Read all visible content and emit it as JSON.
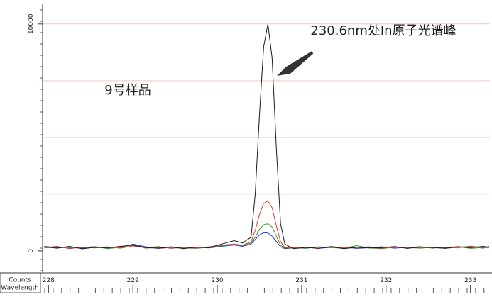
{
  "chart_data": {
    "type": "line",
    "annotation": "230.6nm处In原子光谱峰",
    "sample_label": "9号样品",
    "ylabel": "Counts",
    "xlabel": "Wavelength",
    "x": [
      227.95,
      228.1,
      228.25,
      228.4,
      228.55,
      228.7,
      228.85,
      229.0,
      229.15,
      229.3,
      229.45,
      229.6,
      229.75,
      229.9,
      230.05,
      230.2,
      230.3,
      230.4,
      230.45,
      230.5,
      230.55,
      230.6,
      230.65,
      230.7,
      230.75,
      230.8,
      230.9,
      231.05,
      231.2,
      231.35,
      231.5,
      231.65,
      231.8,
      231.95,
      232.1,
      232.25,
      232.4,
      232.55,
      232.7,
      232.85,
      233.0,
      233.15,
      233.22
    ],
    "series": [
      {
        "color": "#1a1a1a",
        "values": [
          180,
          120,
          200,
          90,
          160,
          130,
          200,
          250,
          150,
          120,
          180,
          100,
          170,
          140,
          300,
          450,
          350,
          600,
          2500,
          6000,
          9000,
          10000,
          8500,
          4500,
          1200,
          300,
          100,
          150,
          120,
          180,
          100,
          160,
          130,
          140,
          190,
          110,
          170,
          150,
          120,
          180,
          140,
          200,
          160
        ]
      },
      {
        "color": "#e0402a",
        "values": [
          150,
          200,
          100,
          170,
          130,
          180,
          120,
          220,
          140,
          190,
          110,
          160,
          130,
          180,
          250,
          300,
          250,
          400,
          900,
          1600,
          2100,
          2200,
          1900,
          1100,
          400,
          150,
          120,
          170,
          100,
          200,
          130,
          150,
          180,
          110,
          160,
          140,
          190,
          120,
          170,
          130,
          210,
          150,
          180
        ]
      },
      {
        "color": "#3a9a3a",
        "values": [
          130,
          170,
          120,
          150,
          190,
          100,
          160,
          280,
          120,
          150,
          170,
          130,
          110,
          160,
          220,
          280,
          230,
          350,
          600,
          950,
          1150,
          1200,
          1050,
          650,
          250,
          120,
          150,
          110,
          180,
          140,
          120,
          230,
          130,
          100,
          170,
          150,
          120,
          160,
          140,
          190,
          110,
          150,
          130
        ]
      },
      {
        "color": "#2838c0",
        "values": [
          200,
          140,
          160,
          120,
          150,
          170,
          130,
          300,
          180,
          110,
          150,
          120,
          160,
          130,
          200,
          260,
          200,
          300,
          500,
          700,
          800,
          780,
          650,
          400,
          180,
          100,
          130,
          160,
          120,
          150,
          170,
          110,
          140,
          180,
          120,
          160,
          130,
          150,
          110,
          170,
          190,
          120,
          200
        ]
      }
    ],
    "xlim": [
      227.93,
      233.23
    ],
    "xticks": [
      228,
      229,
      230,
      231,
      232,
      233
    ],
    "ylim": [
      -940,
      10900
    ],
    "yticks": [
      0,
      10000
    ],
    "ygrid": [
      2500,
      5000,
      7500,
      10000
    ],
    "grid_color": "#f2c6c6"
  }
}
